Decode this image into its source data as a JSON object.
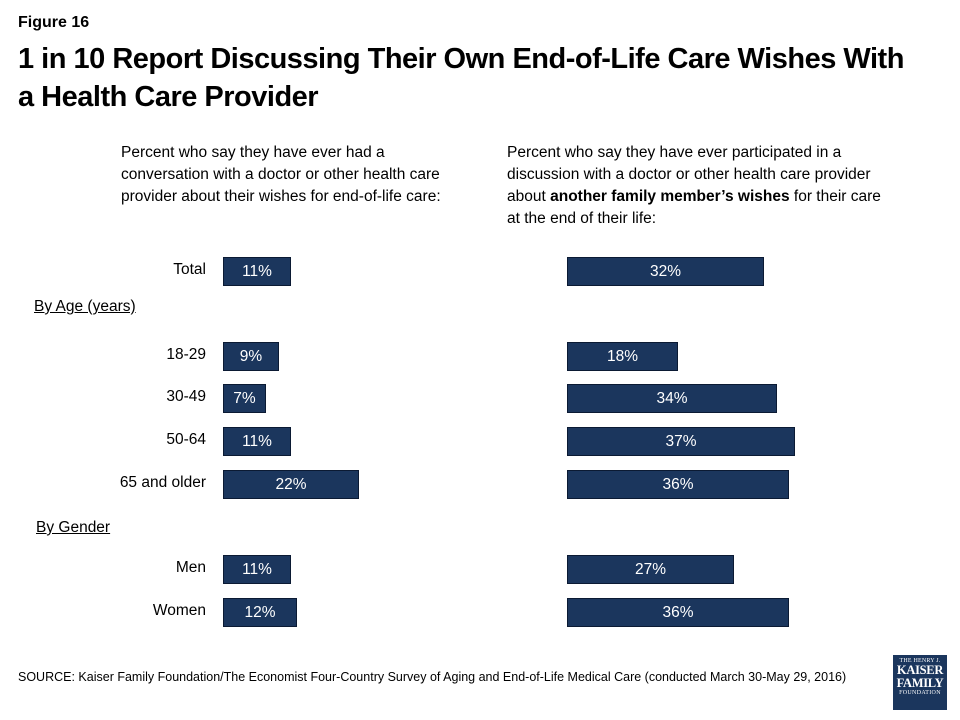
{
  "figure_label": "Figure 16",
  "title": "1 in 10 Report Discussing Their Own End-of-Life Care Wishes With a Health Care Provider",
  "left_subtitle": "Percent who say they have ever had a conversation with a doctor or other health care provider about their wishes for end-of-life care:",
  "right_subtitle": {
    "before": "Percent who say they have ever participated in a discussion with a doctor or other health care provider about ",
    "bold": "another family member’s wishes",
    "after": " for their care at the end of their life:"
  },
  "sections": {
    "age": "By Age (years)",
    "gender": "By Gender"
  },
  "source": "SOURCE: Kaiser Family Foundation/The Economist Four-Country Survey of Aging and End-of-Life Medical Care (conducted March 30-May 29, 2016)",
  "logo": {
    "line1": "THE HENRY J.",
    "line2": "KAISER",
    "line3": "FAMILY",
    "line4": "FOUNDATION"
  },
  "colors": {
    "bar": "#1b365d",
    "bar_text": "#ffffff"
  },
  "chart_data": [
    {
      "type": "bar",
      "orientation": "horizontal",
      "categories": [
        "Total",
        "18-29",
        "30-49",
        "50-64",
        "65 and older",
        "Men",
        "Women"
      ],
      "values": [
        11,
        9,
        7,
        11,
        22,
        11,
        12
      ],
      "labels": [
        "11%",
        "9%",
        "7%",
        "11%",
        "22%",
        "11%",
        "12%"
      ]
    },
    {
      "type": "bar",
      "orientation": "horizontal",
      "categories": [
        "Total",
        "18-29",
        "30-49",
        "50-64",
        "65 and older",
        "Men",
        "Women"
      ],
      "values": [
        32,
        18,
        34,
        37,
        36,
        27,
        36
      ],
      "labels": [
        "32%",
        "18%",
        "34%",
        "37%",
        "36%",
        "27%",
        "36%"
      ]
    }
  ]
}
